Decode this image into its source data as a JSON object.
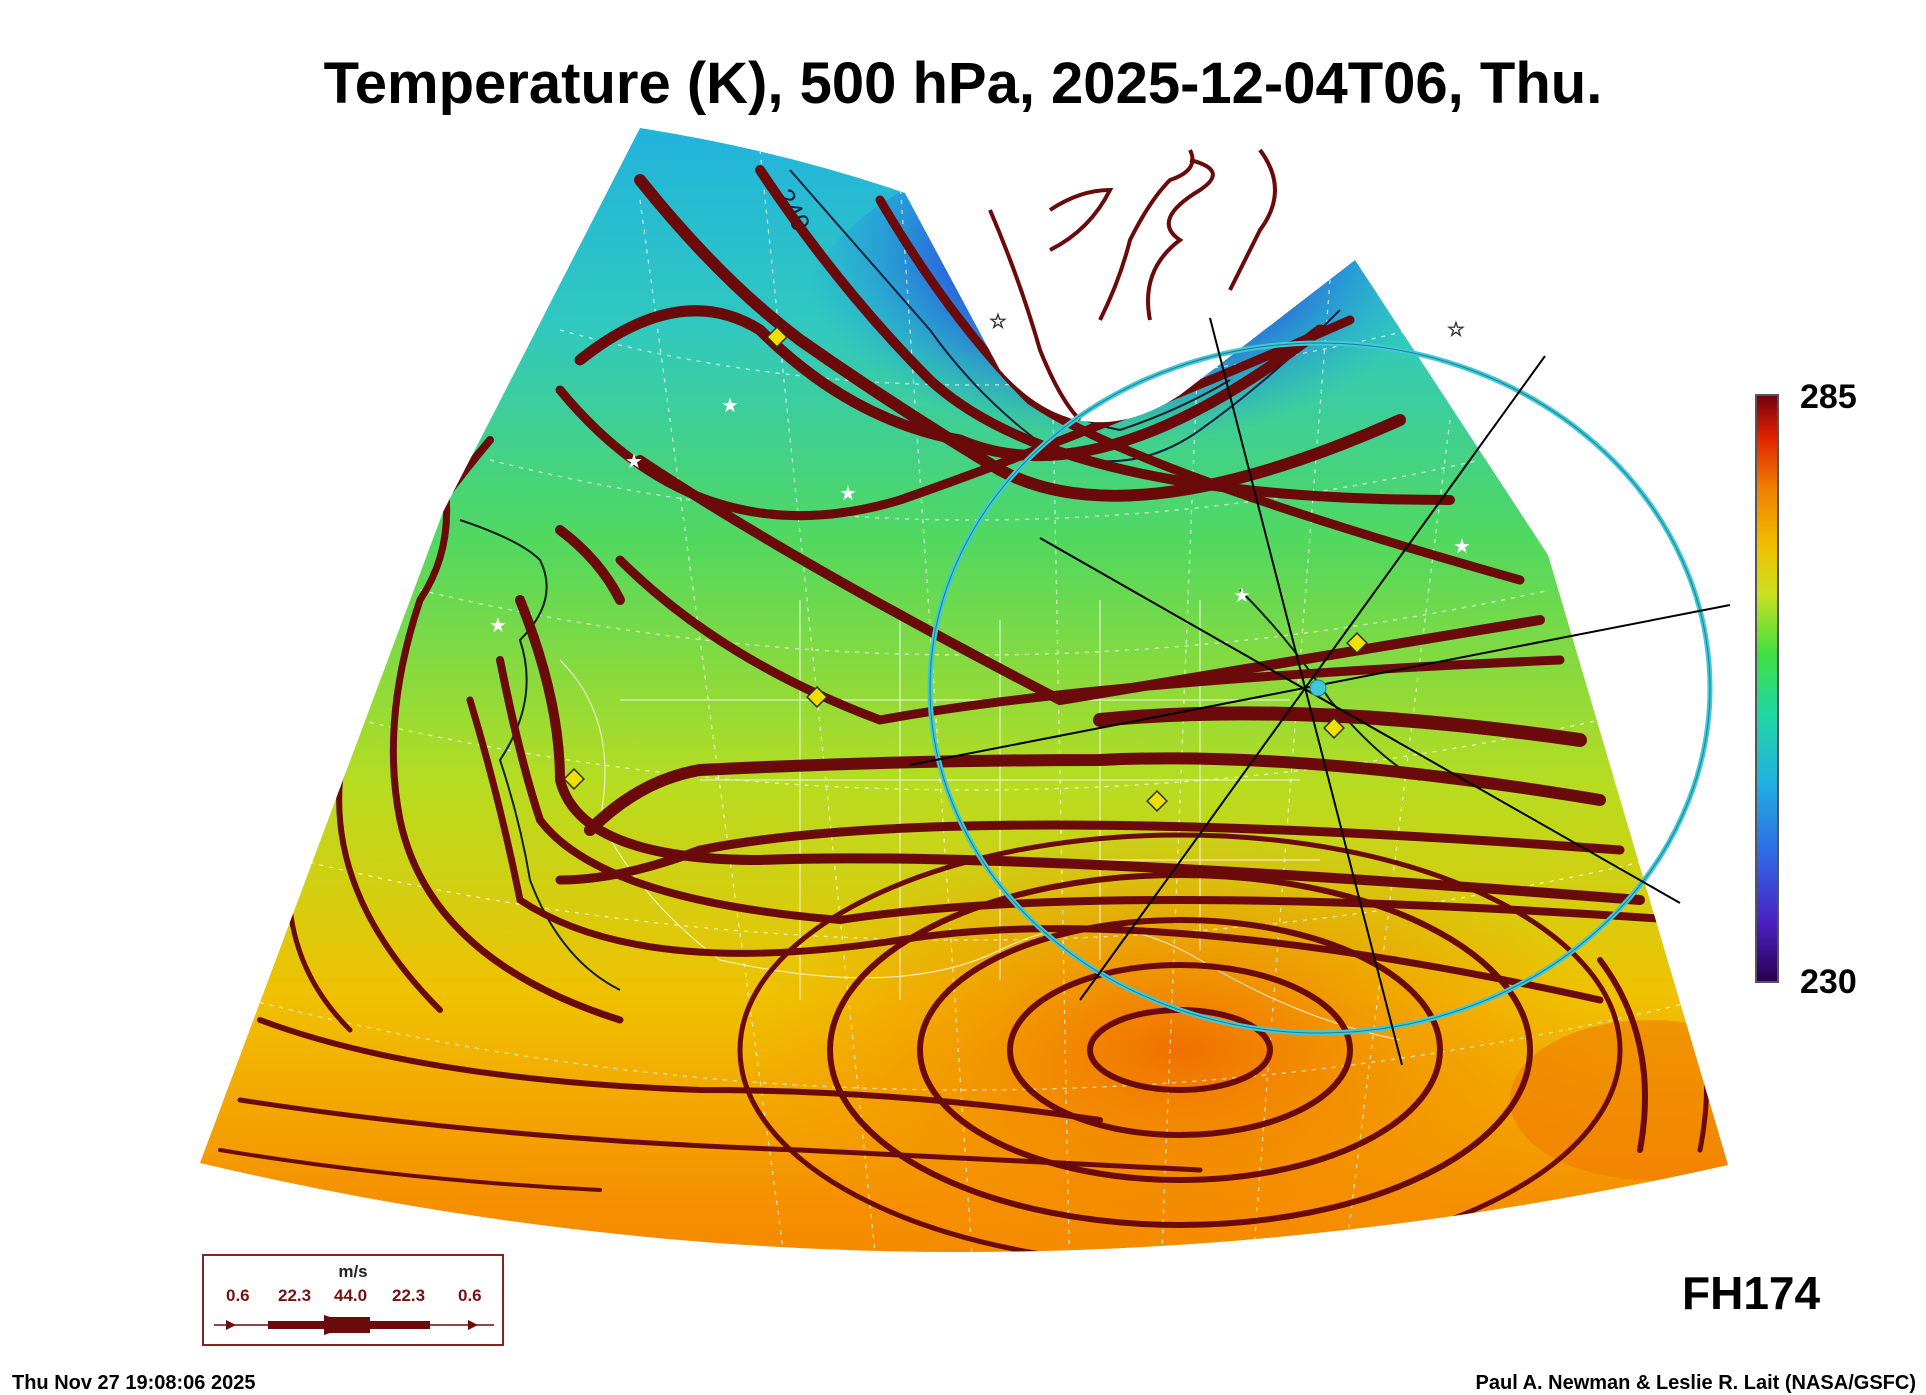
{
  "title": "Temperature (K), 500 hPa, 2025-12-04T06, Thu.",
  "colorbar": {
    "max_label": "285",
    "min_label": "230",
    "colors": [
      "#2a0050",
      "#3a1aa0",
      "#2f5be0",
      "#20a8e0",
      "#20d0a0",
      "#40e040",
      "#c0e020",
      "#f0c000",
      "#f08000",
      "#e02000",
      "#800010"
    ]
  },
  "contour_label": "240",
  "forecast_hour": "FH174",
  "wind_legend": {
    "unit": "m/s",
    "values": [
      "0.6",
      "22.3",
      "44.0",
      "22.3",
      "0.6"
    ]
  },
  "timestamp": "Thu Nov 27 19:08:06 2025",
  "credit": "Paul A. Newman & Leslie R. Lait (NASA/GSFC)",
  "colors": {
    "streamline": "#6b0a0a",
    "circle": "#40c8d8",
    "diamond": "#f0e000"
  }
}
